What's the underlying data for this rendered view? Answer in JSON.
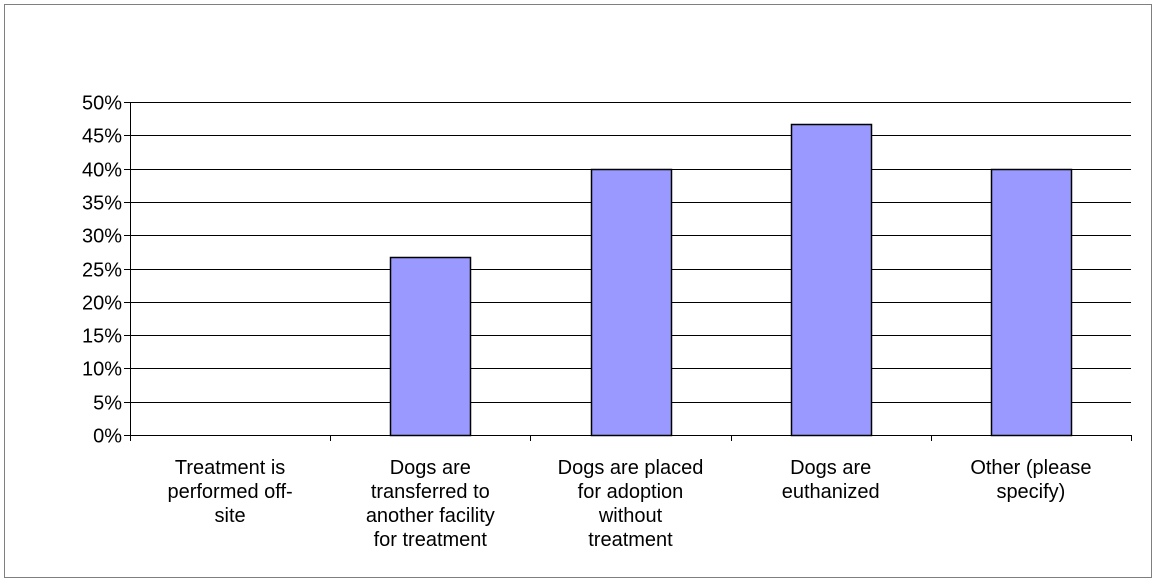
{
  "chart_data": {
    "type": "bar",
    "title": "",
    "xlabel": "",
    "ylabel": "",
    "categories": [
      "Treatment is performed off-site",
      "Dogs are transferred to another facility for treatment",
      "Dogs are placed for adoption without treatment",
      "Dogs are euthanized",
      "Other (please specify)"
    ],
    "category_label_lines": [
      [
        "Treatment is",
        "performed off-",
        "site"
      ],
      [
        "Dogs are",
        "transferred to",
        "another facility",
        "for treatment"
      ],
      [
        "Dogs are placed",
        "for adoption",
        "without",
        "treatment"
      ],
      [
        "Dogs are",
        "euthanized"
      ],
      [
        "Other (please",
        "specify)"
      ]
    ],
    "values": [
      0,
      26.7,
      40,
      46.7,
      40
    ],
    "ylim": [
      0,
      50
    ],
    "ytick_step": 5,
    "ytick_labels": [
      "0%",
      "5%",
      "10%",
      "15%",
      "20%",
      "25%",
      "30%",
      "35%",
      "40%",
      "45%",
      "50%"
    ],
    "grid": true,
    "legend": "none",
    "bar_color": "#9999ff",
    "bar_edge_color": "#000000"
  }
}
